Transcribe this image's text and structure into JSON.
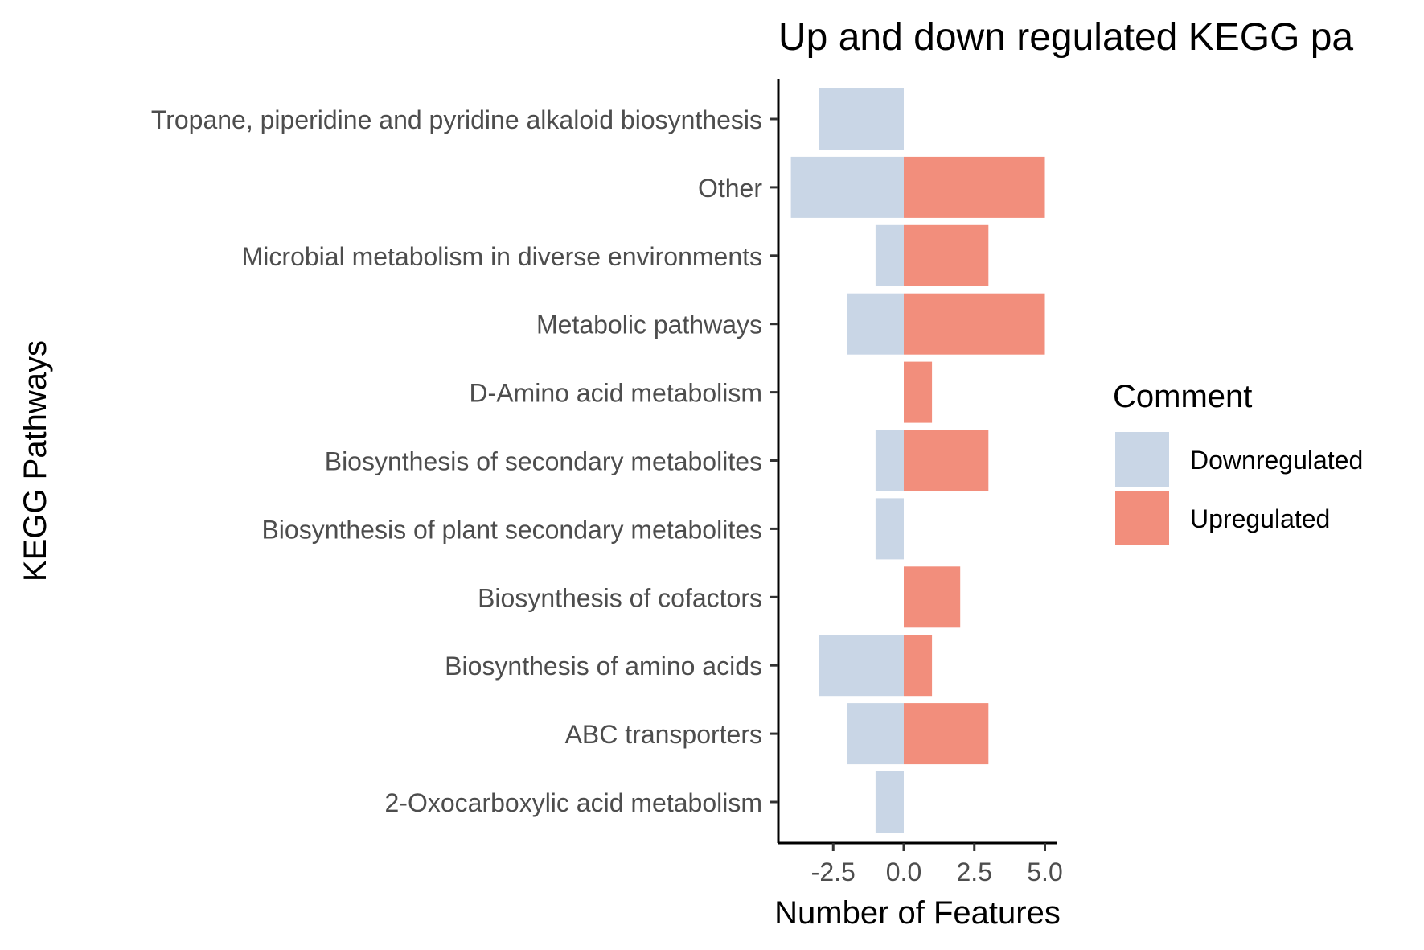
{
  "chart_data": {
    "type": "bar",
    "orientation": "horizontal",
    "title": "Up and down regulated KEGG pa",
    "xlabel": "Number of Features",
    "ylabel": "KEGG Pathways",
    "xlim": [
      -4.5,
      5.5
    ],
    "xticks": [
      -2.5,
      0.0,
      2.5,
      5.0
    ],
    "xtick_labels": [
      "-2.5",
      "0.0",
      "2.5",
      "5.0"
    ],
    "categories": [
      "Tropane, piperidine and pyridine alkaloid biosynthesis",
      "Other",
      "Microbial metabolism in diverse environments",
      "Metabolic pathways",
      "D-Amino acid metabolism",
      "Biosynthesis of secondary metabolites",
      "Biosynthesis of plant secondary metabolites",
      "Biosynthesis of cofactors",
      "Biosynthesis of amino acids",
      "ABC transporters",
      "2-Oxocarboxylic acid metabolism"
    ],
    "series": [
      {
        "name": "Downregulated",
        "color": "#c9d6e6",
        "values": [
          -3,
          -4,
          -1,
          -2,
          0,
          -1,
          -1,
          0,
          -3,
          -2,
          -1
        ]
      },
      {
        "name": "Upregulated",
        "color": "#f28e7c",
        "values": [
          0,
          5,
          3,
          5,
          1,
          3,
          0,
          2,
          1,
          3,
          0
        ]
      }
    ],
    "legend": {
      "title": "Comment",
      "position": "right"
    },
    "grid": false
  }
}
